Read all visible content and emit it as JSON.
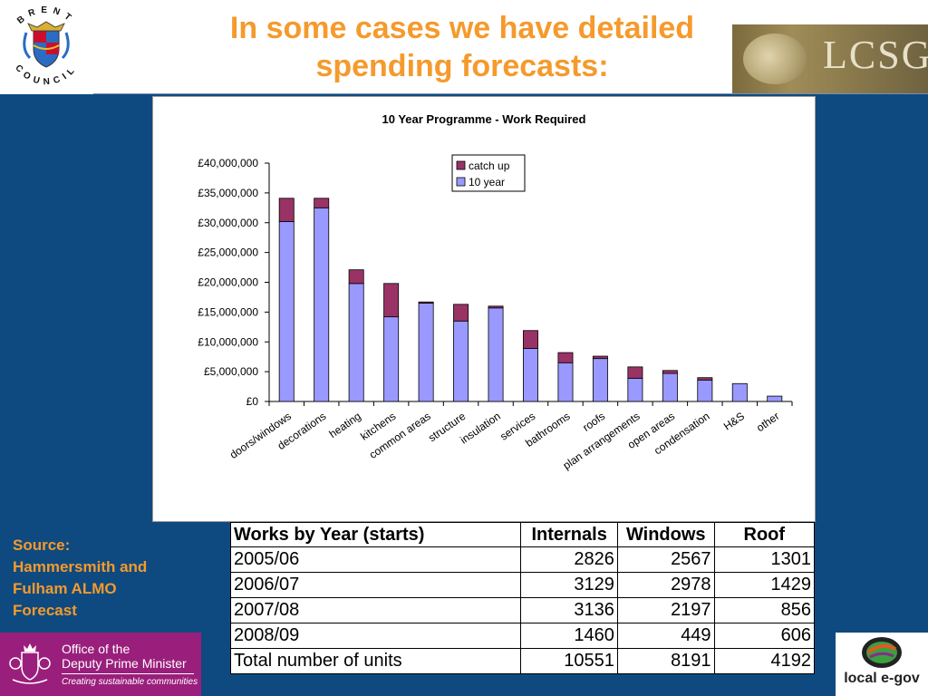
{
  "slide": {
    "title_line1": "In some cases we have detailed",
    "title_line2": "spending forecasts:",
    "source": "Source:\nHammersmith and\nFulham ALMO\nForecast"
  },
  "logos": {
    "council_top": "BRENT",
    "council_bottom": "COUNCIL",
    "lcsg": "LCSG",
    "odpm_line1": "Office of the",
    "odpm_line2": "Deputy Prime Minister",
    "odpm_tagline": "Creating sustainable communities",
    "egov": "local e-gov"
  },
  "colors": {
    "background": "#0e4a80",
    "title": "#f59a2c",
    "ten_year": "#9999ff",
    "catch_up": "#993366"
  },
  "chart_data": {
    "type": "bar",
    "stacked": true,
    "title": "10 Year Programme - Work Required",
    "categories": [
      "doors/windows",
      "decorations",
      "heating",
      "kitchens",
      "common areas",
      "structure",
      "insulation",
      "services",
      "bathrooms",
      "roofs",
      "plan arrangements",
      "open areas",
      "condensation",
      "H&S",
      "other"
    ],
    "series": [
      {
        "name": "10 year",
        "color": "#9999ff",
        "values": [
          30200000,
          32500000,
          19800000,
          14200000,
          16500000,
          13500000,
          15700000,
          8900000,
          6500000,
          7200000,
          3900000,
          4700000,
          3600000,
          3000000,
          900000
        ]
      },
      {
        "name": "catch up",
        "color": "#993366",
        "values": [
          3900000,
          1600000,
          2300000,
          5600000,
          200000,
          2800000,
          300000,
          3000000,
          1700000,
          400000,
          1900000,
          500000,
          400000,
          0,
          0
        ]
      }
    ],
    "legend_order": [
      "catch up",
      "10 year"
    ],
    "legend_position": "top-right",
    "ylim": [
      0,
      40000000
    ],
    "yticks": [
      "£0",
      "£5,000,000",
      "£10,000,000",
      "£15,000,000",
      "£20,000,000",
      "£25,000,000",
      "£30,000,000",
      "£35,000,000",
      "£40,000,000"
    ],
    "grid": false
  },
  "table": {
    "headers": [
      "Works by Year (starts)",
      "Internals",
      "Windows",
      "Roof"
    ],
    "rows": [
      [
        "2005/06",
        "2826",
        "2567",
        "1301"
      ],
      [
        "2006/07",
        "3129",
        "2978",
        "1429"
      ],
      [
        "2007/08",
        "3136",
        "2197",
        "856"
      ],
      [
        "2008/09",
        "1460",
        "449",
        "606"
      ],
      [
        "Total number of units",
        "10551",
        "8191",
        "4192"
      ]
    ]
  }
}
